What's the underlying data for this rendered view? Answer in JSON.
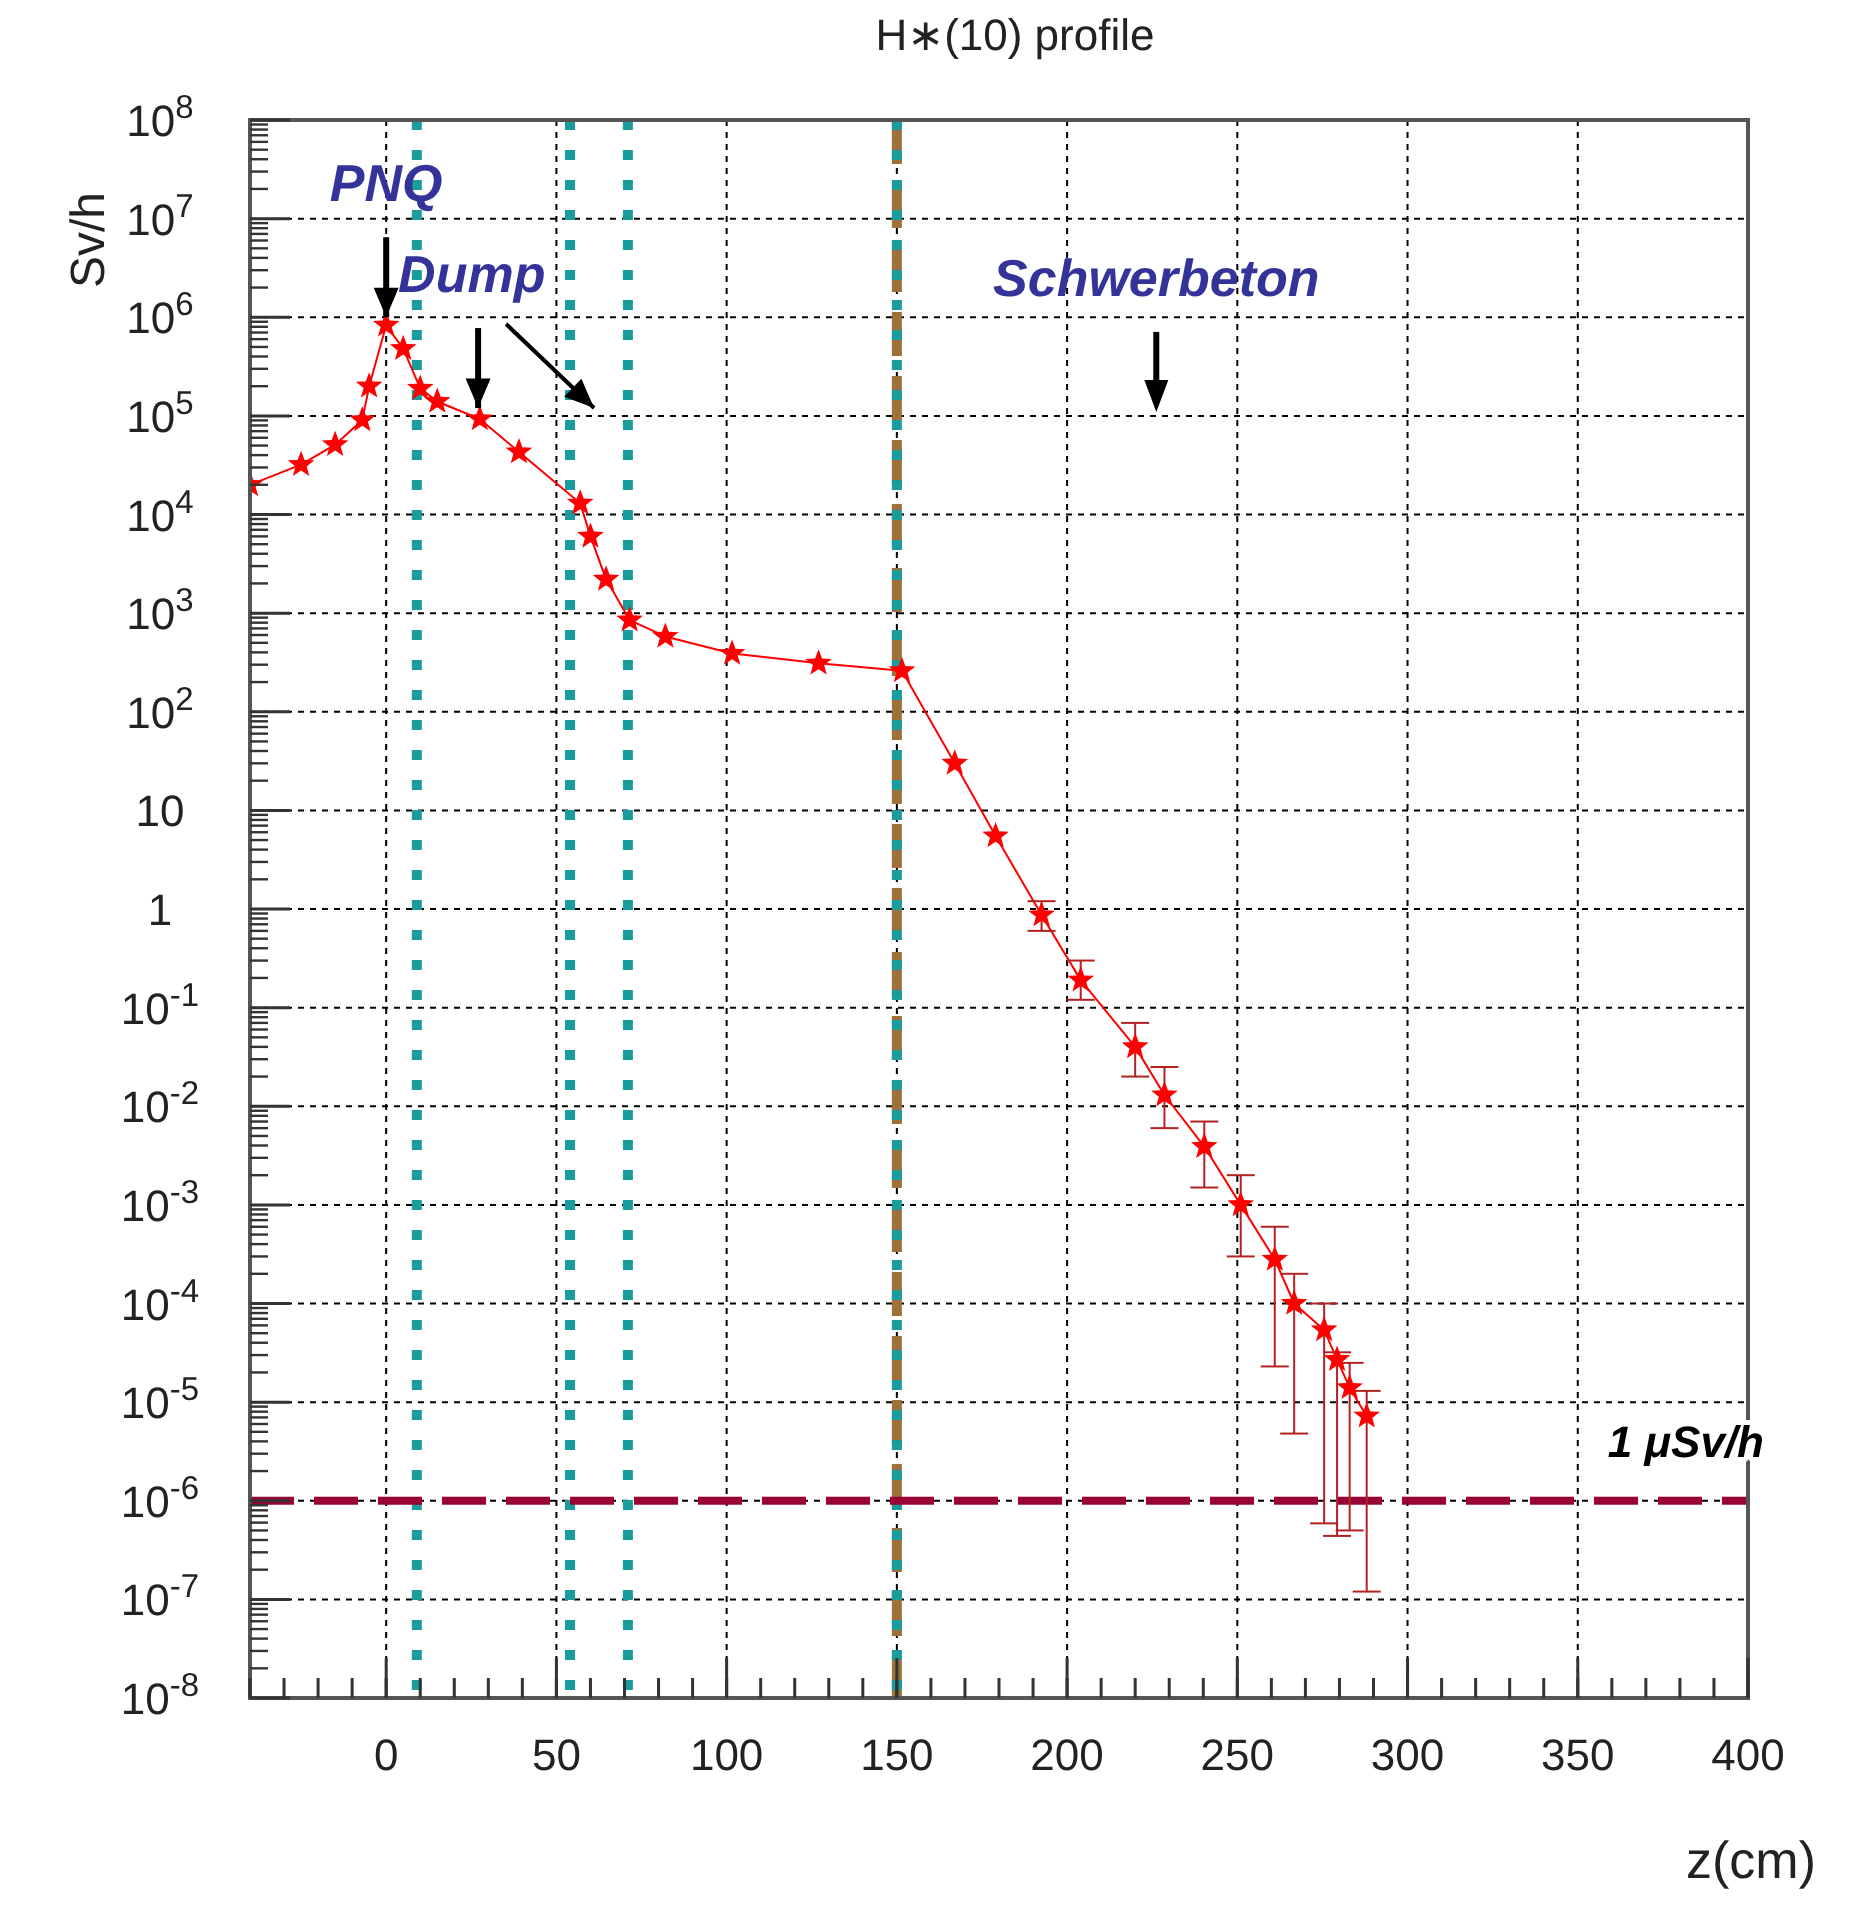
{
  "chart_data": {
    "type": "line",
    "title": "H∗(10) profile",
    "xlabel": "z(cm)",
    "ylabel": "Sv/h",
    "log": "y",
    "grid": true,
    "marker": "star",
    "line_style": "solid",
    "xlim": [
      -40,
      400
    ],
    "xticks": [
      0,
      50,
      100,
      150,
      200,
      250,
      300,
      350,
      400
    ],
    "ylim": [
      1e-08,
      100000000.0
    ],
    "yticks": [
      {
        "value": 1e-08,
        "label": "10$^{-8}$"
      },
      {
        "value": 1e-07,
        "label": "10$^{-7}$"
      },
      {
        "value": 1e-06,
        "label": "10$^{-6}$"
      },
      {
        "value": 1e-05,
        "label": "10$^{-5}$"
      },
      {
        "value": 0.0001,
        "label": "10$^{-4}$"
      },
      {
        "value": 0.001,
        "label": "10$^{-3}$"
      },
      {
        "value": 0.01,
        "label": "10$^{-2}$"
      },
      {
        "value": 0.1,
        "label": "10$^{-1}$"
      },
      1,
      10,
      {
        "value": 100,
        "label": "10$^{2}$"
      },
      {
        "value": 1000,
        "label": "10$^{3}$"
      },
      {
        "value": 10000.0,
        "label": "10$^{4}$"
      },
      {
        "value": 100000.0,
        "label": "10$^{5}$"
      },
      {
        "value": 1000000.0,
        "label": "10$^{6}$"
      },
      {
        "value": 10000000.0,
        "label": "10$^{7}$"
      },
      {
        "value": 100000000.0,
        "label": "10$^{8}$"
      }
    ],
    "series": [
      {
        "color": "#ff0000",
        "x": [
          -40,
          -25,
          -15,
          -7,
          -5,
          0,
          5,
          10,
          15,
          27.5,
          39,
          57,
          60,
          64.6,
          71.5,
          82,
          101.6,
          127,
          151.5,
          167,
          179,
          192.5,
          204,
          220,
          228.6,
          240.3,
          251,
          261,
          266.7,
          275.5,
          279.3,
          283,
          288
        ],
        "values": [
          20000.0,
          32000.0,
          51000.0,
          91000.0,
          200000.0,
          830000.0,
          480000.0,
          190000.0,
          140000.0,
          93000.0,
          43000.0,
          13000.0,
          6000.0,
          2200.0,
          850,
          580,
          390,
          310,
          260,
          30,
          5.5,
          0.87,
          0.19,
          0.04,
          0.013,
          0.0039,
          0.001,
          0.00028,
          0.0001,
          5.4e-05,
          2.7e-05,
          1.4e-05,
          7.2e-06
        ],
        "errors": [
          null,
          null,
          null,
          null,
          null,
          null,
          null,
          null,
          null,
          null,
          null,
          null,
          null,
          null,
          null,
          null,
          null,
          null,
          null,
          null,
          null,
          [
            0.6,
            1.2
          ],
          [
            0.12,
            0.3
          ],
          [
            0.02,
            0.07
          ],
          [
            0.006,
            0.025
          ],
          [
            0.0015,
            0.007
          ],
          [
            0.0003,
            0.002
          ],
          [
            2.3e-05,
            0.0006
          ],
          [
            4.8e-06,
            0.0002
          ],
          [
            5.9e-07,
            0.0001
          ],
          [
            4.4e-07,
            3.2e-05
          ],
          [
            5e-07,
            2.5e-05
          ],
          [
            1.2e-07,
            1.3e-05
          ]
        ]
      }
    ],
    "ref_lines": [
      {
        "axis": "x",
        "value": 9,
        "color": "#199c9c",
        "line_style": "dotted"
      },
      {
        "axis": "x",
        "value": 54,
        "color": "#199c9c",
        "line_style": "dotted"
      },
      {
        "axis": "x",
        "value": 71,
        "color": "#199c9c",
        "line_style": "dotted"
      },
      {
        "axis": "x",
        "value": 150,
        "color": "#a0703a",
        "line_style": "dashed"
      },
      {
        "axis": "x",
        "value": 150,
        "color": "#199c9c",
        "line_style": "dotted"
      },
      {
        "axis": "y",
        "value": 1e-06,
        "color": "#990033",
        "line_style": "dashed",
        "label": "1 μSv/h"
      }
    ],
    "annotations": [
      {
        "text": "PNQ",
        "x": 0,
        "y": 1000000.0
      },
      {
        "text": "Dump",
        "x": 27,
        "y": 120000.0
      },
      "Schwerbeton"
    ]
  }
}
